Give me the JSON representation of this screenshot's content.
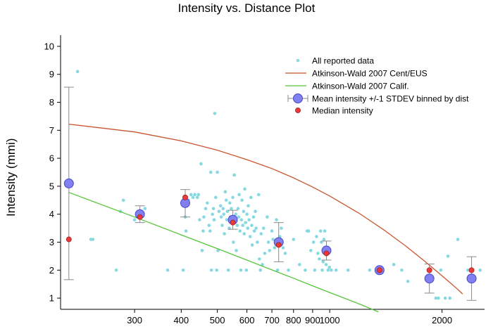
{
  "chart_data": {
    "type": "scatter",
    "title": "Intensity vs. Distance Plot",
    "xlabel": "",
    "ylabel": "Intensity (mmi)",
    "xscale": "log",
    "xlim": [
      190,
      2600
    ],
    "ylim": [
      0.6,
      10.4
    ],
    "x_ticks": [
      300,
      400,
      500,
      600,
      700,
      800,
      900,
      1000,
      2000
    ],
    "x_tick_labels": [
      "300",
      "400",
      "500",
      "600",
      "700",
      "800",
      "900",
      "1000",
      "2000"
    ],
    "y_ticks": [
      1,
      2,
      3,
      4,
      5,
      6,
      7,
      8,
      9,
      10
    ],
    "y_tick_labels": [
      "1",
      "2",
      "3",
      "4",
      "5",
      "6",
      "7",
      "8",
      "9",
      "10"
    ],
    "grid": false,
    "legend_position": "top-right",
    "colors": {
      "all_data": "#86d9e0",
      "cent_eus": "#c8552e",
      "calif": "#55c53a",
      "mean": "#8080f0",
      "mean_edge": "#4848c8",
      "median": "#e83a3a",
      "errorbar": "#8a8a8a"
    },
    "series": [
      {
        "name": "All reported data",
        "type": "scatter",
        "points": [
          [
            211,
            9.1
          ],
          [
            229,
            3.1
          ],
          [
            232,
            3.1
          ],
          [
            268,
            2.0
          ],
          [
            275,
            4.1
          ],
          [
            280,
            4.5
          ],
          [
            300,
            3.8
          ],
          [
            306,
            4.0
          ],
          [
            320,
            4.2
          ],
          [
            368,
            2.0
          ],
          [
            405,
            2.0
          ],
          [
            410,
            3.9
          ],
          [
            412,
            3.4
          ],
          [
            418,
            4.5
          ],
          [
            425,
            4.7
          ],
          [
            430,
            4.6
          ],
          [
            435,
            4.7
          ],
          [
            442,
            4.6
          ],
          [
            445,
            4.7
          ],
          [
            448,
            3.8
          ],
          [
            452,
            5.8
          ],
          [
            455,
            2.7
          ],
          [
            458,
            3.4
          ],
          [
            460,
            3.9
          ],
          [
            465,
            4.2
          ],
          [
            470,
            4.4
          ],
          [
            475,
            3.6
          ],
          [
            478,
            3.4
          ],
          [
            480,
            5.5
          ],
          [
            482,
            2.0
          ],
          [
            485,
            4.0
          ],
          [
            488,
            4.2
          ],
          [
            490,
            3.8
          ],
          [
            492,
            7.6
          ],
          [
            495,
            4.6
          ],
          [
            498,
            2.0
          ],
          [
            500,
            5.5
          ],
          [
            502,
            2.7
          ],
          [
            505,
            4.1
          ],
          [
            510,
            4.3
          ],
          [
            512,
            3.9
          ],
          [
            515,
            3.6
          ],
          [
            518,
            4.2
          ],
          [
            520,
            4.0
          ],
          [
            522,
            3.3
          ],
          [
            525,
            4.8
          ],
          [
            528,
            4.5
          ],
          [
            530,
            3.8
          ],
          [
            532,
            4.1
          ],
          [
            535,
            2.0
          ],
          [
            538,
            3.5
          ],
          [
            540,
            4.4
          ],
          [
            542,
            3.9
          ],
          [
            545,
            4.2
          ],
          [
            548,
            3.7
          ],
          [
            550,
            4.6
          ],
          [
            552,
            3.0
          ],
          [
            555,
            5.4
          ],
          [
            558,
            3.8
          ],
          [
            560,
            4.0
          ],
          [
            562,
            2.7
          ],
          [
            565,
            3.6
          ],
          [
            568,
            4.2
          ],
          [
            570,
            3.9
          ],
          [
            572,
            4.7
          ],
          [
            575,
            3.4
          ],
          [
            578,
            2.0
          ],
          [
            580,
            3.8
          ],
          [
            582,
            4.5
          ],
          [
            585,
            3.6
          ],
          [
            588,
            4.1
          ],
          [
            590,
            3.3
          ],
          [
            592,
            4.9
          ],
          [
            595,
            3.7
          ],
          [
            598,
            2.0
          ],
          [
            600,
            4.0
          ],
          [
            603,
            3.5
          ],
          [
            605,
            4.3
          ],
          [
            608,
            3.8
          ],
          [
            612,
            3.2
          ],
          [
            615,
            4.6
          ],
          [
            618,
            3.6
          ],
          [
            620,
            2.9
          ],
          [
            625,
            3.9
          ],
          [
            628,
            3.4
          ],
          [
            632,
            4.1
          ],
          [
            635,
            3.5
          ],
          [
            640,
            3.0
          ],
          [
            645,
            4.7
          ],
          [
            648,
            2.4
          ],
          [
            652,
            2.0
          ],
          [
            655,
            3.3
          ],
          [
            660,
            2.2
          ],
          [
            665,
            3.5
          ],
          [
            670,
            2.6
          ],
          [
            680,
            3.9
          ],
          [
            685,
            3.0
          ],
          [
            690,
            2.7
          ],
          [
            700,
            3.4
          ],
          [
            705,
            3.1
          ],
          [
            712,
            2.8
          ],
          [
            720,
            3.8
          ],
          [
            725,
            2.0
          ],
          [
            735,
            3.2
          ],
          [
            742,
            3.5
          ],
          [
            750,
            2.8
          ],
          [
            760,
            2.6
          ],
          [
            775,
            2.0
          ],
          [
            800,
            3.1
          ],
          [
            830,
            2.2
          ],
          [
            860,
            2.0
          ],
          [
            870,
            3.4
          ],
          [
            878,
            3.4
          ],
          [
            890,
            2.7
          ],
          [
            905,
            3.0
          ],
          [
            912,
            2.0
          ],
          [
            922,
            3.2
          ],
          [
            930,
            2.6
          ],
          [
            938,
            2.4
          ],
          [
            945,
            3.4
          ],
          [
            950,
            3.0
          ],
          [
            955,
            2.0
          ],
          [
            960,
            2.3
          ],
          [
            965,
            3.1
          ],
          [
            970,
            3.4
          ],
          [
            978,
            2.2
          ],
          [
            985,
            2.8
          ],
          [
            990,
            2.0
          ],
          [
            998,
            2.1
          ],
          [
            1010,
            2.0
          ],
          [
            1040,
            2.0
          ],
          [
            1120,
            2.0
          ],
          [
            1280,
            2.0
          ],
          [
            1485,
            2.2
          ],
          [
            1560,
            2.0
          ],
          [
            1620,
            1.6
          ],
          [
            1860,
            2.0
          ],
          [
            1925,
            1.0
          ],
          [
            1955,
            1.0
          ],
          [
            1985,
            2.0
          ],
          [
            2040,
            1.0
          ],
          [
            2075,
            2.5
          ],
          [
            2100,
            1.0
          ],
          [
            2205,
            3.1
          ],
          [
            2345,
            2.0
          ],
          [
            2410,
            2.0
          ],
          [
            2530,
            2.0
          ]
        ]
      },
      {
        "name": "Atkinson-Wald 2007 Cent/EUS",
        "type": "line",
        "points": [
          [
            200,
            7.22
          ],
          [
            300,
            6.94
          ],
          [
            400,
            6.62
          ],
          [
            500,
            6.29
          ],
          [
            600,
            5.95
          ],
          [
            700,
            5.63
          ],
          [
            800,
            5.3
          ],
          [
            900,
            4.97
          ],
          [
            1000,
            4.65
          ],
          [
            1200,
            4.03
          ],
          [
            1400,
            3.43
          ],
          [
            1600,
            2.86
          ],
          [
            1800,
            2.31
          ],
          [
            2000,
            1.8
          ],
          [
            2200,
            1.32
          ],
          [
            2270,
            1.15
          ]
        ]
      },
      {
        "name": "Atkinson-Wald 2007 Calif.",
        "type": "line",
        "points": [
          [
            200,
            4.78
          ],
          [
            300,
            3.9
          ],
          [
            400,
            3.26
          ],
          [
            500,
            2.77
          ],
          [
            600,
            2.36
          ],
          [
            700,
            2.01
          ],
          [
            800,
            1.71
          ],
          [
            900,
            1.44
          ],
          [
            1000,
            1.2
          ],
          [
            1200,
            0.79
          ],
          [
            1350,
            0.51
          ]
        ]
      },
      {
        "name": "Mean intensity +/-1 STDEV binned by dist",
        "type": "errorbar",
        "points": [
          {
            "x": 200,
            "y": 5.1,
            "low": 1.66,
            "high": 8.54
          },
          {
            "x": 310,
            "y": 4.0,
            "low": 3.7,
            "high": 4.3
          },
          {
            "x": 410,
            "y": 4.4,
            "low": 3.9,
            "high": 4.88
          },
          {
            "x": 550,
            "y": 3.8,
            "low": 3.46,
            "high": 4.14
          },
          {
            "x": 730,
            "y": 3.0,
            "low": 2.3,
            "high": 3.7
          },
          {
            "x": 980,
            "y": 2.7,
            "low": 2.36,
            "high": 3.04
          },
          {
            "x": 1360,
            "y": 2.0,
            "low": 2.0,
            "high": 2.0
          },
          {
            "x": 1850,
            "y": 1.7,
            "low": 1.18,
            "high": 2.22
          },
          {
            "x": 2400,
            "y": 1.7,
            "low": 0.92,
            "high": 2.48
          }
        ]
      },
      {
        "name": "Median intensity",
        "type": "scatter",
        "points": [
          [
            200,
            3.1
          ],
          [
            310,
            3.9
          ],
          [
            410,
            4.6
          ],
          [
            550,
            3.7
          ],
          [
            730,
            2.9
          ],
          [
            980,
            2.6
          ],
          [
            1360,
            2.0
          ],
          [
            1850,
            2.0
          ],
          [
            2400,
            2.0
          ]
        ]
      }
    ]
  }
}
